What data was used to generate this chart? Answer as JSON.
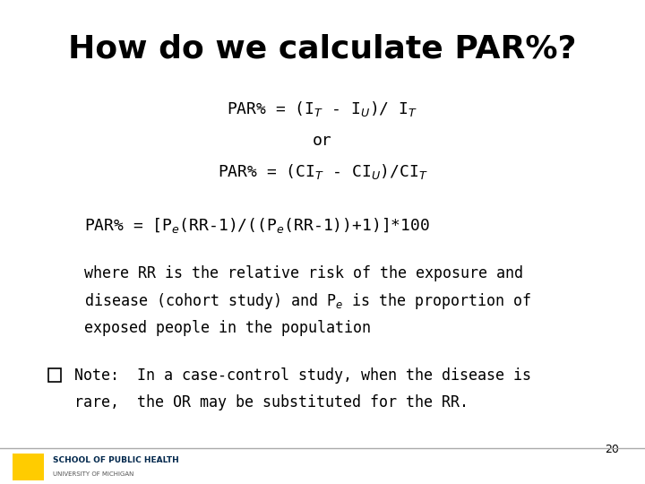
{
  "bg_color": "#FFFFFF",
  "text_color": "#000000",
  "title": "How do we calculate PAR%?",
  "formula1": "PAR% = (I$_T$ - I$_U$)/ I$_T$",
  "formula_or": "or",
  "formula2": "PAR% = (CI$_T$ - CI$_U$)/CI$_T$",
  "formula3": "PAR% = [P$_e$(RR-1)/((P$_e$(RR-1))+1)]*100",
  "where1": "where RR is the relative risk of the exposure and",
  "where2": "disease (cohort study) and P$_e$ is the proportion of",
  "where3": "exposed people in the population",
  "note1": "Note:  In a case-control study, when the disease is",
  "note2": "rare,  the OR may be substituted for the RR.",
  "page_number": "20",
  "logo_yellow": "#FFCC00",
  "logo_blue": "#00274C",
  "school_text": "SCHOOL OF PUBLIC HEALTH",
  "univ_text": "UNIVERSITY OF MICHIGAN"
}
